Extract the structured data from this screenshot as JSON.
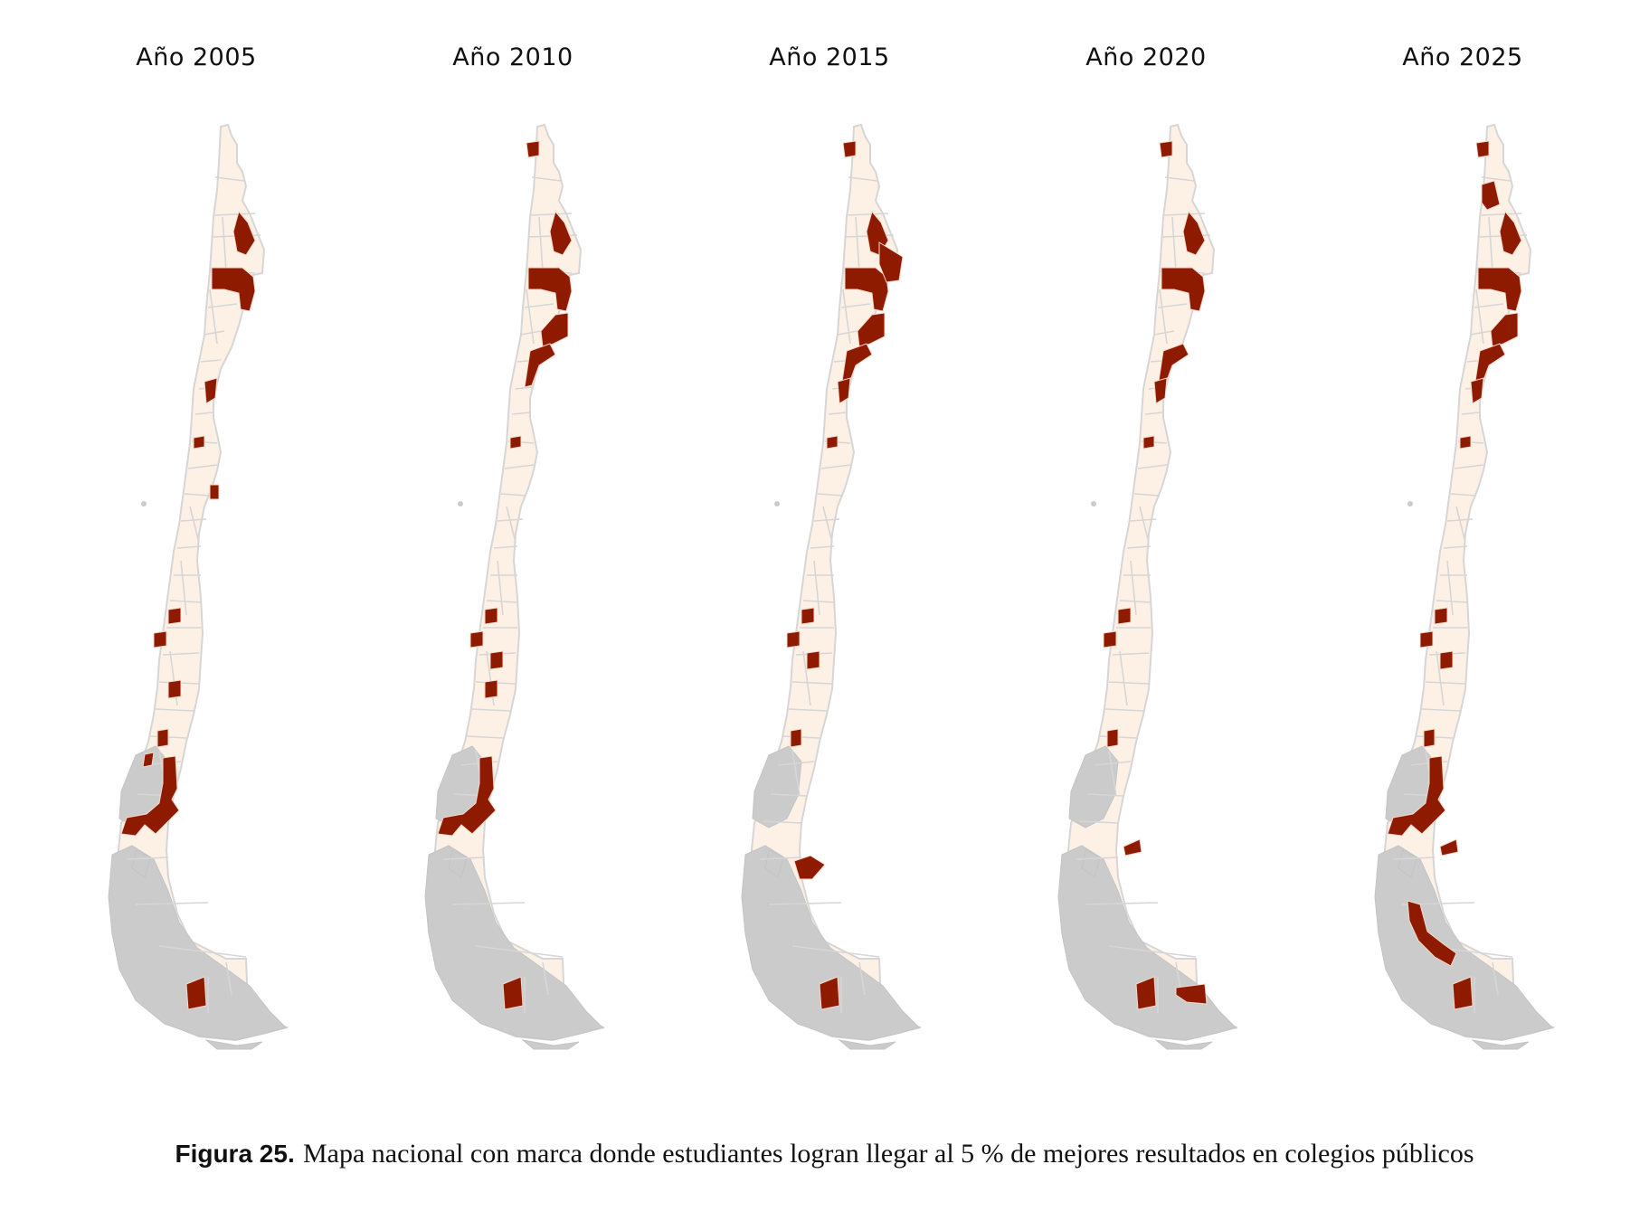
{
  "figure": {
    "panels": [
      {
        "title": "Año 2005",
        "highlighted": [
          "nortegrande-1",
          "nortegrande-2",
          "atacama-1",
          "coquimbo-1",
          "valparaiso-1",
          "maule-1",
          "biobio-1",
          "araucania-1",
          "loslagos-1",
          "loslagos-2",
          "aysen-1",
          "magallanes-1"
        ]
      },
      {
        "title": "Año 2010",
        "highlighted": [
          "arica-1",
          "nortegrande-1",
          "nortegrande-2",
          "antofagasta-1",
          "antofagasta-2",
          "coquimbo-1",
          "maule-1",
          "biobio-1",
          "biobio-2",
          "araucania-1",
          "aysen-1",
          "magallanes-1"
        ]
      },
      {
        "title": "Año 2015",
        "highlighted": [
          "arica-1",
          "nortegrande-1",
          "nortegrande-2",
          "nortegrande-3",
          "antofagasta-1",
          "antofagasta-2",
          "atacama-1",
          "coquimbo-1",
          "maule-1",
          "biobio-1",
          "biobio-2",
          "loslagos-1",
          "aysen-2",
          "magallanes-1"
        ]
      },
      {
        "title": "Año 2020",
        "highlighted": [
          "arica-1",
          "nortegrande-1",
          "nortegrande-2",
          "antofagasta-2",
          "atacama-1",
          "coquimbo-1",
          "maule-1",
          "biobio-1",
          "loslagos-1",
          "aysen-3",
          "magallanes-1",
          "magallanes-2"
        ]
      },
      {
        "title": "Año 2025",
        "highlighted": [
          "arica-1",
          "tarapaca-1",
          "nortegrande-1",
          "nortegrande-2",
          "antofagasta-1",
          "antofagasta-2",
          "atacama-1",
          "coquimbo-1",
          "maule-1",
          "biobio-1",
          "biobio-2",
          "loslagos-1",
          "aysen-1",
          "aysen-3",
          "magallanes-1",
          "magallanes-3"
        ]
      }
    ]
  },
  "legend_colors": {
    "highlight": "#8e1a00",
    "base": "#fdf1e6",
    "border": "#d6d6d6",
    "islands": "#cbcbcb"
  },
  "caption": {
    "label": "Figura 25.",
    "text": "Mapa nacional con marca donde estudiantes logran llegar al 5 % de mejores resultados en colegios públicos"
  }
}
